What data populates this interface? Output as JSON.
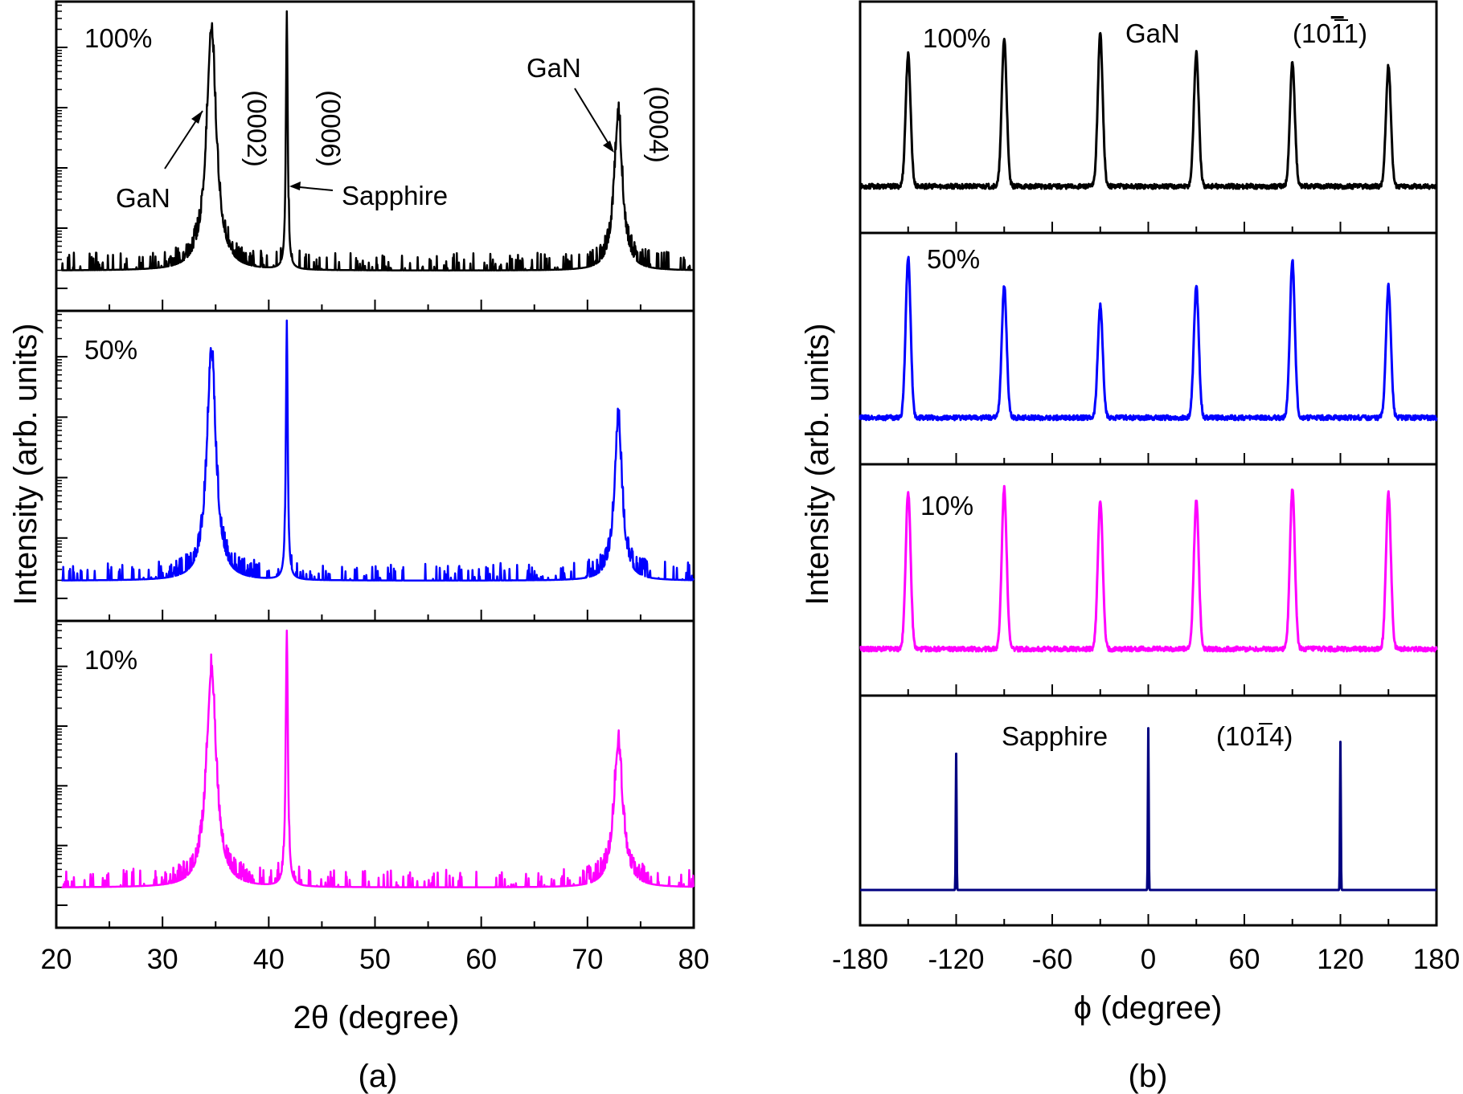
{
  "figure": {
    "panel_a_tag": "(a)",
    "panel_b_tag": "(b)"
  },
  "chart_data": [
    {
      "type": "line",
      "panel": "(a)",
      "xlabel": "2θ (degree)",
      "ylabel": "Intensity (arb. units)",
      "xlim": [
        20,
        80
      ],
      "x_ticks": [
        20,
        30,
        40,
        50,
        60,
        70,
        80
      ],
      "y_scale": "log",
      "annotations": [
        {
          "text": "GaN",
          "points_to": "GaN (0002) peak"
        },
        {
          "text": "(0002)",
          "rotation": 90
        },
        {
          "text": "(0006)",
          "rotation": 90
        },
        {
          "text": "Sapphire",
          "points_to": "Sapphire (0006) peak"
        },
        {
          "text": "GaN",
          "points_to": "GaN (0004) peak"
        },
        {
          "text": "(0004)",
          "rotation": 90
        }
      ],
      "series": [
        {
          "name": "100%",
          "color": "#000000",
          "peaks": [
            {
              "x": 34.6,
              "height": 0.93,
              "width": 0.55
            },
            {
              "x": 41.7,
              "height": 1.0,
              "width": 0.1
            },
            {
              "x": 72.9,
              "height": 0.6,
              "width": 0.45
            }
          ]
        },
        {
          "name": "50%",
          "color": "#0000ff",
          "peaks": [
            {
              "x": 34.6,
              "height": 0.88,
              "width": 0.5
            },
            {
              "x": 41.7,
              "height": 1.0,
              "width": 0.1
            },
            {
              "x": 72.9,
              "height": 0.62,
              "width": 0.42
            }
          ]
        },
        {
          "name": "10%",
          "color": "#ff00ff",
          "peaks": [
            {
              "x": 34.6,
              "height": 0.84,
              "width": 0.55
            },
            {
              "x": 41.7,
              "height": 1.0,
              "width": 0.12
            },
            {
              "x": 72.9,
              "height": 0.55,
              "width": 0.5
            }
          ]
        }
      ]
    },
    {
      "type": "line",
      "panel": "(b)",
      "xlabel": "ϕ (degree)",
      "ylabel": "Intensity (arb. units)",
      "xlim": [
        -180,
        180
      ],
      "x_ticks": [
        -180,
        -120,
        -60,
        0,
        60,
        120,
        180
      ],
      "annotations": [
        {
          "text": "GaN"
        },
        {
          "text": "(10",
          "overbar": "1",
          "end": "1)"
        },
        {
          "text": "Sapphire"
        },
        {
          "text": "(10",
          "overbar": "1",
          "end": "4)"
        }
      ],
      "series": [
        {
          "name": "100%",
          "color": "#000000",
          "reflection": "GaN (10-11)",
          "peaks": [
            {
              "x": -150,
              "height": 0.82
            },
            {
              "x": -90,
              "height": 0.92
            },
            {
              "x": -30,
              "height": 0.95
            },
            {
              "x": 30,
              "height": 0.83
            },
            {
              "x": 90,
              "height": 0.77
            },
            {
              "x": 150,
              "height": 0.75
            }
          ]
        },
        {
          "name": "50%",
          "color": "#0000ff",
          "reflection": "GaN (10-11)",
          "peaks": [
            {
              "x": -150,
              "height": 1.0
            },
            {
              "x": -90,
              "height": 0.82
            },
            {
              "x": -30,
              "height": 0.7
            },
            {
              "x": 30,
              "height": 0.82
            },
            {
              "x": 90,
              "height": 0.98
            },
            {
              "x": 150,
              "height": 0.82
            }
          ]
        },
        {
          "name": "10%",
          "color": "#ff00ff",
          "reflection": "GaN (10-11)",
          "peaks": [
            {
              "x": -150,
              "height": 0.98
            },
            {
              "x": -90,
              "height": 1.0
            },
            {
              "x": -30,
              "height": 0.93
            },
            {
              "x": 30,
              "height": 0.93
            },
            {
              "x": 90,
              "height": 1.0
            },
            {
              "x": 150,
              "height": 0.97
            }
          ]
        },
        {
          "name": "Sapphire",
          "color": "#000080",
          "reflection": "Sapphire (10-14)",
          "peaks": [
            {
              "x": -120,
              "height": 0.8
            },
            {
              "x": 0,
              "height": 0.95
            },
            {
              "x": 120,
              "height": 0.87
            }
          ]
        }
      ]
    }
  ]
}
